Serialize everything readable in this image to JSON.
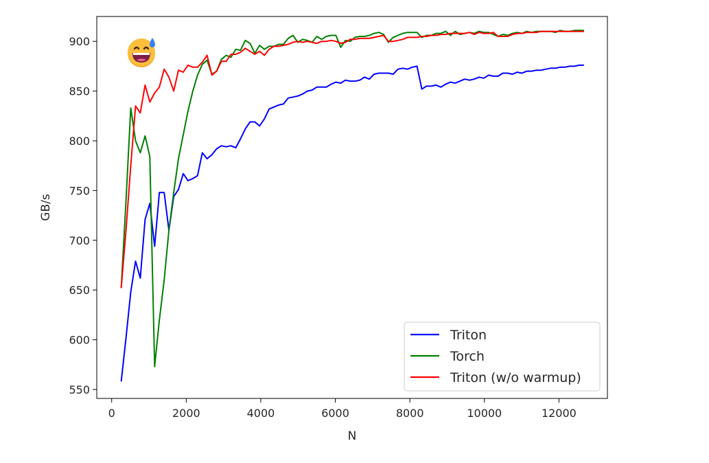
{
  "chart_data": {
    "type": "line",
    "title": "",
    "xlabel": "N",
    "ylabel": "GB/s",
    "xlim": [
      -400,
      13300
    ],
    "ylim": [
      541,
      925
    ],
    "xticks": [
      0,
      2000,
      4000,
      6000,
      8000,
      10000,
      12000
    ],
    "yticks": [
      550,
      600,
      650,
      700,
      750,
      800,
      850,
      900
    ],
    "grid": false,
    "legend": "bottom-right",
    "series": [
      {
        "name": "Triton",
        "color": "#0000ff",
        "points": [
          [
            256,
            558
          ],
          [
            384,
            602
          ],
          [
            512,
            648
          ],
          [
            640,
            679
          ],
          [
            768,
            662
          ],
          [
            896,
            721
          ],
          [
            1024,
            737
          ],
          [
            1152,
            694
          ],
          [
            1280,
            748
          ],
          [
            1408,
            748
          ],
          [
            1536,
            710
          ],
          [
            1664,
            744
          ],
          [
            1792,
            751
          ],
          [
            1920,
            767
          ],
          [
            2048,
            760
          ],
          [
            2176,
            762
          ],
          [
            2304,
            765
          ],
          [
            2432,
            788
          ],
          [
            2560,
            782
          ],
          [
            2688,
            786
          ],
          [
            2816,
            792
          ],
          [
            2944,
            795
          ],
          [
            3072,
            794
          ],
          [
            3200,
            795
          ],
          [
            3328,
            793
          ],
          [
            3456,
            802
          ],
          [
            3584,
            812
          ],
          [
            3712,
            819
          ],
          [
            3840,
            819
          ],
          [
            3968,
            815
          ],
          [
            4096,
            822
          ],
          [
            4224,
            832
          ],
          [
            4352,
            834
          ],
          [
            4480,
            836
          ],
          [
            4608,
            837
          ],
          [
            4736,
            843
          ],
          [
            4864,
            844
          ],
          [
            4992,
            845
          ],
          [
            5120,
            847
          ],
          [
            5248,
            850
          ],
          [
            5376,
            851
          ],
          [
            5504,
            854
          ],
          [
            5632,
            854
          ],
          [
            5760,
            854
          ],
          [
            5888,
            857
          ],
          [
            6016,
            859
          ],
          [
            6144,
            858
          ],
          [
            6272,
            861
          ],
          [
            6400,
            860
          ],
          [
            6528,
            860
          ],
          [
            6656,
            861
          ],
          [
            6784,
            864
          ],
          [
            6912,
            862
          ],
          [
            7040,
            867
          ],
          [
            7168,
            868
          ],
          [
            7296,
            868
          ],
          [
            7424,
            868
          ],
          [
            7552,
            867
          ],
          [
            7680,
            872
          ],
          [
            7808,
            873
          ],
          [
            7936,
            872
          ],
          [
            8064,
            874
          ],
          [
            8192,
            875
          ],
          [
            8320,
            852
          ],
          [
            8448,
            855
          ],
          [
            8576,
            855
          ],
          [
            8704,
            856
          ],
          [
            8832,
            854
          ],
          [
            8960,
            857
          ],
          [
            9088,
            859
          ],
          [
            9216,
            858
          ],
          [
            9344,
            860
          ],
          [
            9472,
            862
          ],
          [
            9600,
            861
          ],
          [
            9728,
            862
          ],
          [
            9856,
            864
          ],
          [
            9984,
            863
          ],
          [
            10112,
            866
          ],
          [
            10240,
            865
          ],
          [
            10368,
            865
          ],
          [
            10496,
            868
          ],
          [
            10624,
            868
          ],
          [
            10752,
            867
          ],
          [
            10880,
            869
          ],
          [
            11008,
            868
          ],
          [
            11136,
            870
          ],
          [
            11264,
            870
          ],
          [
            11392,
            871
          ],
          [
            11520,
            871
          ],
          [
            11648,
            872
          ],
          [
            11776,
            873
          ],
          [
            11904,
            873
          ],
          [
            12032,
            874
          ],
          [
            12160,
            874
          ],
          [
            12288,
            875
          ],
          [
            12416,
            875
          ],
          [
            12544,
            876
          ],
          [
            12672,
            876
          ]
        ]
      },
      {
        "name": "Torch",
        "color": "#008000",
        "points": [
          [
            256,
            652
          ],
          [
            384,
            740
          ],
          [
            512,
            833
          ],
          [
            640,
            800
          ],
          [
            768,
            788
          ],
          [
            896,
            805
          ],
          [
            1024,
            784
          ],
          [
            1152,
            573
          ],
          [
            1280,
            620
          ],
          [
            1408,
            660
          ],
          [
            1536,
            710
          ],
          [
            1664,
            748
          ],
          [
            1792,
            782
          ],
          [
            1920,
            806
          ],
          [
            2048,
            830
          ],
          [
            2176,
            850
          ],
          [
            2304,
            866
          ],
          [
            2432,
            877
          ],
          [
            2560,
            881
          ],
          [
            2688,
            867
          ],
          [
            2816,
            870
          ],
          [
            2944,
            882
          ],
          [
            3072,
            886
          ],
          [
            3200,
            884
          ],
          [
            3328,
            892
          ],
          [
            3456,
            891
          ],
          [
            3584,
            901
          ],
          [
            3712,
            898
          ],
          [
            3840,
            888
          ],
          [
            3968,
            896
          ],
          [
            4096,
            892
          ],
          [
            4224,
            895
          ],
          [
            4352,
            895
          ],
          [
            4480,
            897
          ],
          [
            4608,
            897
          ],
          [
            4736,
            903
          ],
          [
            4864,
            906
          ],
          [
            4992,
            899
          ],
          [
            5120,
            902
          ],
          [
            5248,
            901
          ],
          [
            5376,
            899
          ],
          [
            5504,
            905
          ],
          [
            5632,
            902
          ],
          [
            5760,
            905
          ],
          [
            5888,
            906
          ],
          [
            6016,
            906
          ],
          [
            6144,
            894
          ],
          [
            6272,
            901
          ],
          [
            6400,
            900
          ],
          [
            6528,
            904
          ],
          [
            6656,
            905
          ],
          [
            6784,
            905
          ],
          [
            6912,
            906
          ],
          [
            7040,
            908
          ],
          [
            7168,
            909
          ],
          [
            7296,
            907
          ],
          [
            7424,
            899
          ],
          [
            7552,
            904
          ],
          [
            7680,
            906
          ],
          [
            7808,
            908
          ],
          [
            7936,
            909
          ],
          [
            8064,
            909
          ],
          [
            8192,
            909
          ],
          [
            8320,
            904
          ],
          [
            8448,
            906
          ],
          [
            8576,
            906
          ],
          [
            8704,
            908
          ],
          [
            8832,
            908
          ],
          [
            8960,
            910
          ],
          [
            9088,
            906
          ],
          [
            9216,
            910
          ],
          [
            9344,
            907
          ],
          [
            9472,
            908
          ],
          [
            9600,
            909
          ],
          [
            9728,
            908
          ],
          [
            9856,
            910
          ],
          [
            9984,
            909
          ],
          [
            10112,
            909
          ],
          [
            10240,
            907
          ],
          [
            10368,
            905
          ],
          [
            10496,
            907
          ],
          [
            10624,
            906
          ],
          [
            10752,
            908
          ],
          [
            10880,
            909
          ],
          [
            11008,
            908
          ],
          [
            11136,
            910
          ],
          [
            11264,
            909
          ],
          [
            11392,
            910
          ],
          [
            11520,
            910
          ],
          [
            11648,
            910
          ],
          [
            11776,
            910
          ],
          [
            11904,
            909
          ],
          [
            12032,
            911
          ],
          [
            12160,
            910
          ],
          [
            12288,
            910
          ],
          [
            12416,
            911
          ],
          [
            12544,
            911
          ],
          [
            12672,
            911
          ]
        ]
      },
      {
        "name": "Triton (w/o warmup)",
        "color": "#ff0000",
        "points": [
          [
            256,
            652
          ],
          [
            384,
            710
          ],
          [
            512,
            775
          ],
          [
            640,
            835
          ],
          [
            768,
            828
          ],
          [
            896,
            856
          ],
          [
            1024,
            839
          ],
          [
            1152,
            848
          ],
          [
            1280,
            854
          ],
          [
            1408,
            872
          ],
          [
            1536,
            864
          ],
          [
            1664,
            850
          ],
          [
            1792,
            871
          ],
          [
            1920,
            869
          ],
          [
            2048,
            876
          ],
          [
            2176,
            874
          ],
          [
            2304,
            874
          ],
          [
            2432,
            879
          ],
          [
            2560,
            886
          ],
          [
            2688,
            866
          ],
          [
            2816,
            870
          ],
          [
            2944,
            880
          ],
          [
            3072,
            880
          ],
          [
            3200,
            887
          ],
          [
            3328,
            887
          ],
          [
            3456,
            889
          ],
          [
            3584,
            893
          ],
          [
            3712,
            890
          ],
          [
            3840,
            887
          ],
          [
            3968,
            890
          ],
          [
            4096,
            886
          ],
          [
            4224,
            892
          ],
          [
            4352,
            895
          ],
          [
            4480,
            895
          ],
          [
            4608,
            896
          ],
          [
            4736,
            897
          ],
          [
            4864,
            899
          ],
          [
            4992,
            900
          ],
          [
            5120,
            899
          ],
          [
            5248,
            900
          ],
          [
            5376,
            899
          ],
          [
            5504,
            898
          ],
          [
            5632,
            900
          ],
          [
            5760,
            900
          ],
          [
            5888,
            901
          ],
          [
            6016,
            900
          ],
          [
            6144,
            898
          ],
          [
            6272,
            899
          ],
          [
            6400,
            902
          ],
          [
            6528,
            902
          ],
          [
            6656,
            903
          ],
          [
            6784,
            903
          ],
          [
            6912,
            903
          ],
          [
            7040,
            904
          ],
          [
            7168,
            905
          ],
          [
            7296,
            906
          ],
          [
            7424,
            900
          ],
          [
            7552,
            900
          ],
          [
            7680,
            901
          ],
          [
            7808,
            902
          ],
          [
            7936,
            904
          ],
          [
            8064,
            904
          ],
          [
            8192,
            904
          ],
          [
            8320,
            905
          ],
          [
            8448,
            905
          ],
          [
            8576,
            906
          ],
          [
            8704,
            906
          ],
          [
            8832,
            907
          ],
          [
            8960,
            907
          ],
          [
            9088,
            908
          ],
          [
            9216,
            908
          ],
          [
            9344,
            908
          ],
          [
            9472,
            908
          ],
          [
            9600,
            909
          ],
          [
            9728,
            907
          ],
          [
            9856,
            909
          ],
          [
            9984,
            908
          ],
          [
            10112,
            908
          ],
          [
            10240,
            909
          ],
          [
            10368,
            905
          ],
          [
            10496,
            905
          ],
          [
            10624,
            905
          ],
          [
            10752,
            907
          ],
          [
            10880,
            908
          ],
          [
            11008,
            908
          ],
          [
            11136,
            909
          ],
          [
            11264,
            909
          ],
          [
            11392,
            909
          ],
          [
            11520,
            910
          ],
          [
            11648,
            910
          ],
          [
            11776,
            910
          ],
          [
            11904,
            910
          ],
          [
            12032,
            910
          ],
          [
            12160,
            910
          ],
          [
            12288,
            910
          ],
          [
            12416,
            910
          ],
          [
            12544,
            910
          ],
          [
            12672,
            910
          ]
        ]
      }
    ]
  },
  "decoration": {
    "icon": "grinning-sweat-emoji-icon"
  }
}
